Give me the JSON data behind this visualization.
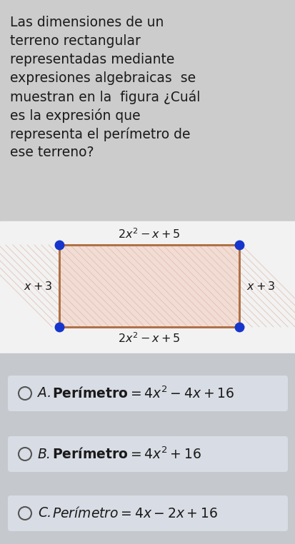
{
  "bg_color": "#c8c8c8",
  "bg_bottom_color": "#c5c8cc",
  "white_box_color": "#f0f0f0",
  "question_text_lines": [
    "Las dimensiones de un",
    "terreno rectangular",
    "representadas mediante",
    "expresiones algebraicas  se",
    "muestran en la  figura ¿Cuál",
    "es la expresión que",
    "representa el perímetro de",
    "ese terreno?"
  ],
  "rect_fill": "#f2ddd5",
  "rect_edge": "#b07045",
  "rect_hatch_color": "#ddb8a8",
  "top_label": "$2x^2 - x + 5$",
  "bottom_label": "$2x^2 - x + 5$",
  "left_label": "$x + 3$",
  "right_label": "$x + 3$",
  "dot_color": "#1535cc",
  "options": [
    {
      "letter": "A.",
      "formula": "$\\mathbf{Perímetro} = 4x^2 - 4x + 16$"
    },
    {
      "letter": "B.",
      "formula": "$\\mathbf{Perímetro} = 4x^2 + 16$"
    },
    {
      "letter": "C.",
      "formula": "$Perímetro = 4x - 2x + 16$"
    }
  ],
  "option_bg": "#d8dce4",
  "text_color": "#1a1a1a",
  "font_size_question": 13.5,
  "font_size_labels": 11.5,
  "font_size_options": 13.5
}
